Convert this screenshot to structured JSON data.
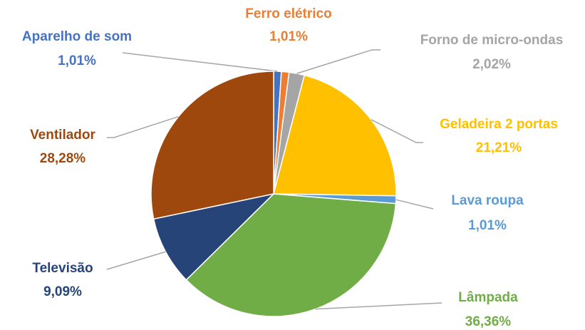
{
  "chart_data": {
    "type": "pie",
    "categories": [
      "Aparelho de som",
      "Ferro elétrico",
      "Forno de micro-ondas",
      "Geladeira 2 portas",
      "Lava roupa",
      "Lâmpada",
      "Televisão",
      "Ventilador"
    ],
    "values": [
      1.01,
      1.01,
      2.02,
      21.21,
      1.01,
      36.36,
      9.09,
      28.28
    ],
    "value_labels": [
      "1,01%",
      "1,01%",
      "2,02%",
      "21,21%",
      "1,01%",
      "36,36%",
      "9,09%",
      "28,28%"
    ],
    "colors": [
      "#4472c4",
      "#ed7d31",
      "#a5a5a5",
      "#ffc000",
      "#5b9bd5",
      "#70ad47",
      "#264478",
      "#9e480e"
    ]
  }
}
